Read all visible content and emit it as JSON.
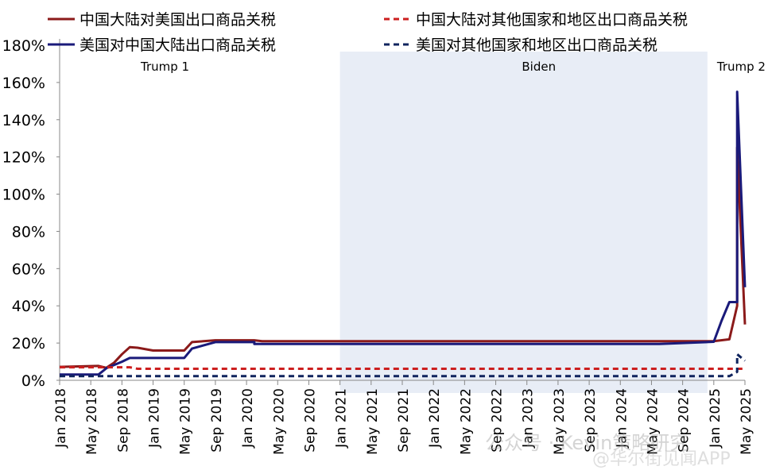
{
  "chart_data": {
    "type": "line",
    "title": "",
    "xlabel": "",
    "ylabel": "",
    "ylim": [
      0,
      180
    ],
    "y_ticks": [
      "0%",
      "20%",
      "40%",
      "60%",
      "80%",
      "100%",
      "120%",
      "140%",
      "160%",
      "180%"
    ],
    "x_ticks": [
      "Jan 2018",
      "May 2018",
      "Sep 2018",
      "Jan 2019",
      "May 2019",
      "Sep 2019",
      "Jan 2020",
      "May 2020",
      "Sep 2020",
      "Jan 2021",
      "May 2021",
      "Sep 2021",
      "Jan 2022",
      "May 2022",
      "Sep 2022",
      "Jan 2023",
      "May 2023",
      "Sep 2023",
      "Jan 2024",
      "May 2024",
      "Sep 2024",
      "Jan 2025",
      "May 2025"
    ],
    "grid": false,
    "legend": "top",
    "shaded_period": {
      "label": "Biden",
      "from": "2021-01",
      "to": "2025-01"
    },
    "period_labels": [
      {
        "label": "Trump 1",
        "at": "2019-01"
      },
      {
        "label": "Biden",
        "at": "2023-01"
      },
      {
        "label": "Trump 2",
        "at": "2025-03"
      }
    ],
    "series": [
      {
        "name": "中国大陆对美国出口商品关税",
        "color": "#8b1a1a",
        "style": "solid",
        "points": [
          [
            "2018-01",
            7.2
          ],
          [
            "2018-04",
            7.5
          ],
          [
            "2018-06",
            7.7
          ],
          [
            "2018-07",
            6.7
          ],
          [
            "2018-08",
            9.5
          ],
          [
            "2018-09",
            14
          ],
          [
            "2018-10",
            17.8
          ],
          [
            "2018-11",
            17.5
          ],
          [
            "2019-01",
            16
          ],
          [
            "2019-05",
            16
          ],
          [
            "2019-06",
            20.5
          ],
          [
            "2019-09",
            21.5
          ],
          [
            "2020-02",
            21.5
          ],
          [
            "2020-03",
            21.0
          ],
          [
            "2024-09",
            21.0
          ],
          [
            "2025-01",
            21.0
          ],
          [
            "2025-03",
            22.0
          ],
          [
            "2025-04",
            40
          ],
          [
            "2025-04",
            125
          ],
          [
            "2025-05",
            30
          ]
        ]
      },
      {
        "name": "美国对中国大陆出口商品关税",
        "color": "#1a1a7a",
        "style": "solid",
        "points": [
          [
            "2018-01",
            3.1
          ],
          [
            "2018-06",
            3.1
          ],
          [
            "2018-07",
            6.5
          ],
          [
            "2018-09",
            10
          ],
          [
            "2018-10",
            12
          ],
          [
            "2019-05",
            12
          ],
          [
            "2019-06",
            17
          ],
          [
            "2019-09",
            20.5
          ],
          [
            "2020-02",
            20.5
          ],
          [
            "2020-02",
            19.5
          ],
          [
            "2024-06",
            19.5
          ],
          [
            "2025-01",
            20.7
          ],
          [
            "2025-02",
            32
          ],
          [
            "2025-03",
            42
          ],
          [
            "2025-04",
            42
          ],
          [
            "2025-04",
            155
          ],
          [
            "2025-05",
            50
          ]
        ]
      },
      {
        "name": "中国大陆对其他国家和地区出口商品关税",
        "color": "#cc1f1f",
        "style": "dashed",
        "points": [
          [
            "2018-01",
            7.0
          ],
          [
            "2018-10",
            7.0
          ],
          [
            "2018-11",
            6.2
          ],
          [
            "2025-04",
            6.2
          ],
          [
            "2025-05",
            6.2
          ]
        ]
      },
      {
        "name": "美国对其他国家和地区出口商品关税",
        "color": "#10245e",
        "style": "dashed",
        "points": [
          [
            "2018-01",
            2.2
          ],
          [
            "2025-03",
            2.2
          ],
          [
            "2025-04",
            4.5
          ],
          [
            "2025-04",
            14
          ],
          [
            "2025-05",
            10.5
          ]
        ]
      }
    ]
  },
  "watermark": "公众号 · Kevin策略研究",
  "watermark2": "@华尔街见闻APP"
}
